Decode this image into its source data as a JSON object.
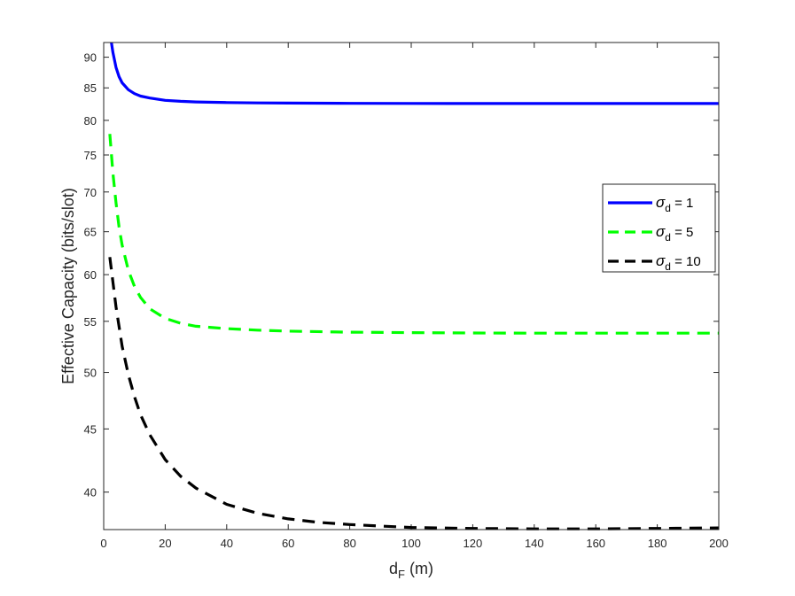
{
  "chart_data": {
    "type": "line",
    "title": "",
    "xlabel": {
      "main": "d",
      "sub": "F",
      "unit": " (m)"
    },
    "ylabel": "Effective Capacity (bits/slot)",
    "xlim": [
      0,
      200
    ],
    "ylim": [
      37.3,
      92.5
    ],
    "y_scale": "log",
    "xticks": [
      0,
      20,
      40,
      60,
      80,
      100,
      120,
      140,
      160,
      180,
      200
    ],
    "yticks": [
      40,
      45,
      50,
      55,
      60,
      65,
      70,
      75,
      80,
      85,
      90
    ],
    "grid": false,
    "legend_position": "right",
    "series": [
      {
        "name": "σ_d = 1",
        "legend": {
          "sigma": "σ",
          "sub": "d",
          "rest": " = 1"
        },
        "color": "#0000ff",
        "dash": "solid",
        "x": [
          2.5,
          3,
          4,
          5,
          6,
          8,
          10,
          12,
          15,
          20,
          25,
          30,
          40,
          50,
          60,
          80,
          100,
          120,
          140,
          160,
          180,
          200
        ],
        "y": [
          92.5,
          90.8,
          88.3,
          86.8,
          85.8,
          84.7,
          84.1,
          83.7,
          83.4,
          83.05,
          82.9,
          82.8,
          82.7,
          82.65,
          82.62,
          82.58,
          82.56,
          82.55,
          82.55,
          82.55,
          82.55,
          82.55
        ]
      },
      {
        "name": "σ_d = 5",
        "legend": {
          "sigma": "σ",
          "sub": "d",
          "rest": " = 5"
        },
        "color": "#00ff00",
        "dash": "dashed",
        "x": [
          2,
          3,
          4,
          5,
          6,
          8,
          10,
          12,
          15,
          20,
          25,
          30,
          40,
          50,
          60,
          80,
          100,
          120,
          140,
          160,
          180,
          200
        ],
        "y": [
          78,
          72.5,
          68.6,
          65.6,
          63.4,
          60.5,
          58.7,
          57.5,
          56.3,
          55.3,
          54.8,
          54.5,
          54.25,
          54.1,
          54.0,
          53.9,
          53.85,
          53.82,
          53.8,
          53.8,
          53.8,
          53.8
        ]
      },
      {
        "name": "σ_d = 10",
        "legend": {
          "sigma": "σ",
          "sub": "d",
          "rest": " = 10"
        },
        "color": "#000000",
        "dash": "dashed",
        "x": [
          2,
          4,
          6,
          8,
          10,
          12,
          15,
          20,
          25,
          30,
          40,
          50,
          60,
          70,
          80,
          90,
          100,
          120,
          140,
          160,
          180,
          200
        ],
        "y": [
          62,
          56.5,
          52.5,
          49.8,
          47.8,
          46.2,
          44.5,
          42.5,
          41.2,
          40.3,
          39.1,
          38.45,
          38.05,
          37.8,
          37.65,
          37.55,
          37.45,
          37.38,
          37.35,
          37.35,
          37.38,
          37.42
        ]
      }
    ]
  }
}
